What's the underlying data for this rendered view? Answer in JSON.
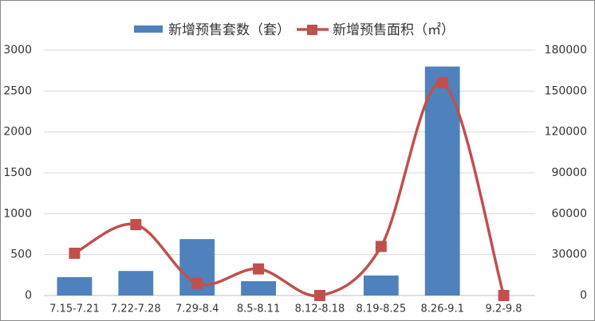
{
  "chart_data": {
    "type": "bar-line",
    "categories": [
      "7.15-7.21",
      "7.22-7.28",
      "7.29-8.4",
      "8.5-8.11",
      "8.12-8.18",
      "8.19-8.25",
      "8.26-9.1",
      "9.2-9.8"
    ],
    "series": [
      {
        "name": "新增预售套数（套）",
        "type": "bar",
        "color": "#4f81bd",
        "values": [
          225,
          300,
          690,
          175,
          0,
          245,
          2800,
          0
        ]
      },
      {
        "name": "新增预售面积（㎡）",
        "type": "line",
        "color": "#c0504d",
        "axis": "y2",
        "values": [
          31000,
          52000,
          9000,
          19500,
          0,
          36000,
          156000,
          0
        ]
      }
    ],
    "ylim": [
      0,
      3000
    ],
    "yticks": [
      0,
      500,
      1000,
      1500,
      2000,
      2500,
      3000
    ],
    "y2lim": [
      0,
      180000
    ],
    "y2ticks": [
      0,
      30000,
      60000,
      90000,
      120000,
      150000,
      180000
    ],
    "grid": true,
    "legend": "top"
  }
}
